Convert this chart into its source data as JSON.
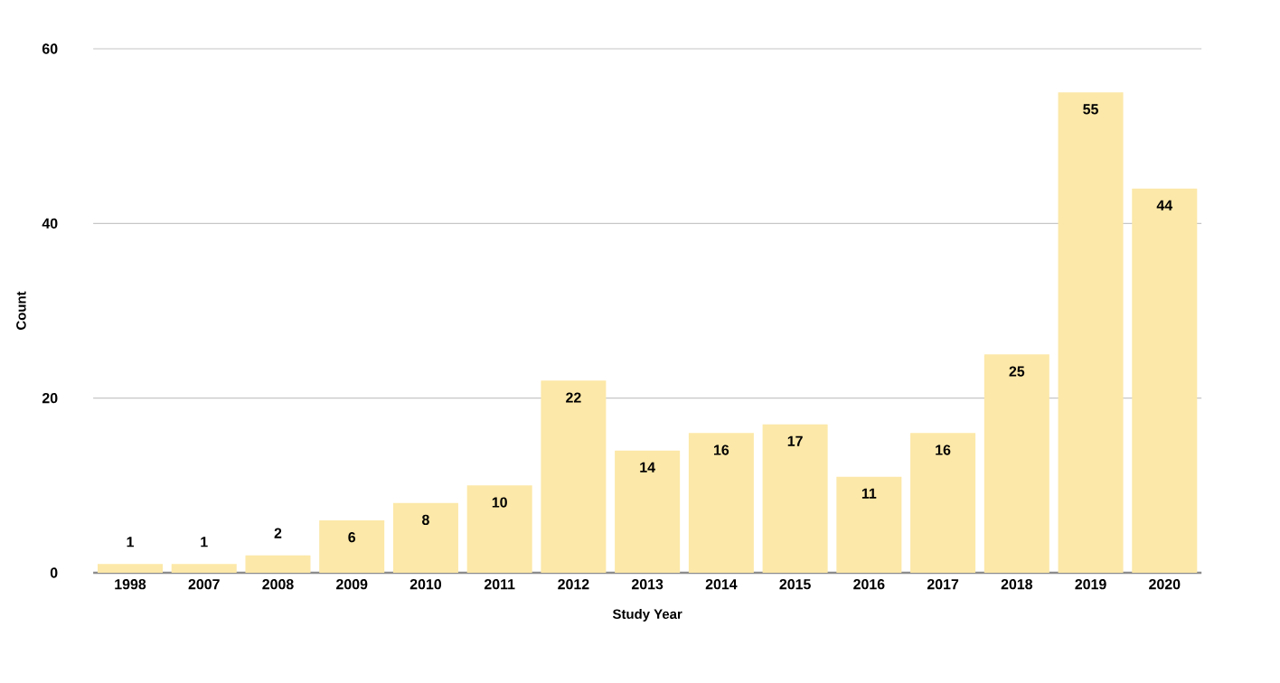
{
  "chart_data": {
    "type": "bar",
    "xlabel": "Study Year",
    "ylabel": "Count",
    "categories": [
      "1998",
      "2007",
      "2008",
      "2009",
      "2010",
      "2011",
      "2012",
      "2013",
      "2014",
      "2015",
      "2016",
      "2017",
      "2018",
      "2019",
      "2020"
    ],
    "values": [
      1,
      1,
      2,
      6,
      8,
      10,
      22,
      14,
      16,
      17,
      11,
      16,
      25,
      55,
      44
    ],
    "color": "#fce8a8",
    "ylim": [
      0,
      60
    ],
    "yticks": [
      0,
      20,
      40,
      60
    ],
    "grid": "y",
    "data_labels": true
  }
}
